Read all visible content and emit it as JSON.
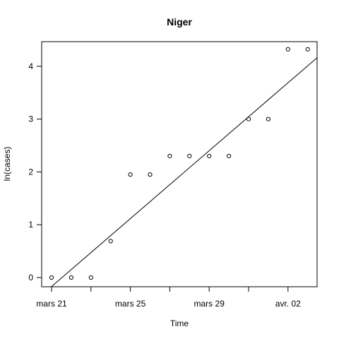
{
  "chart_data": {
    "type": "scatter",
    "title": "Niger",
    "xlabel": "Time",
    "ylabel": "ln(cases)",
    "x_ticks": [
      "mars 21",
      "mars 25",
      "mars 29",
      "avr. 02"
    ],
    "y_ticks": [
      "0",
      "1",
      "2",
      "3",
      "4"
    ],
    "x_dates": [
      "2020-03-21",
      "2020-03-22",
      "2020-03-23",
      "2020-03-24",
      "2020-03-25",
      "2020-03-26",
      "2020-03-27",
      "2020-03-28",
      "2020-03-29",
      "2020-03-30",
      "2020-03-31",
      "2020-04-01",
      "2020-04-02",
      "2020-04-03"
    ],
    "y": [
      0,
      0,
      0,
      0.69,
      1.95,
      1.95,
      2.3,
      2.3,
      2.3,
      2.3,
      3.0,
      3.0,
      4.32,
      4.32
    ],
    "fit_line": {
      "x": [
        "2020-03-21",
        "2020-04-04"
      ],
      "y": [
        -0.17,
        4.33
      ]
    },
    "xlim": [
      "2020-03-20",
      "2020-04-04"
    ],
    "ylim": [
      -0.17,
      4.5
    ],
    "grid": false,
    "point_marker": "open-circle",
    "color": "#000000"
  }
}
